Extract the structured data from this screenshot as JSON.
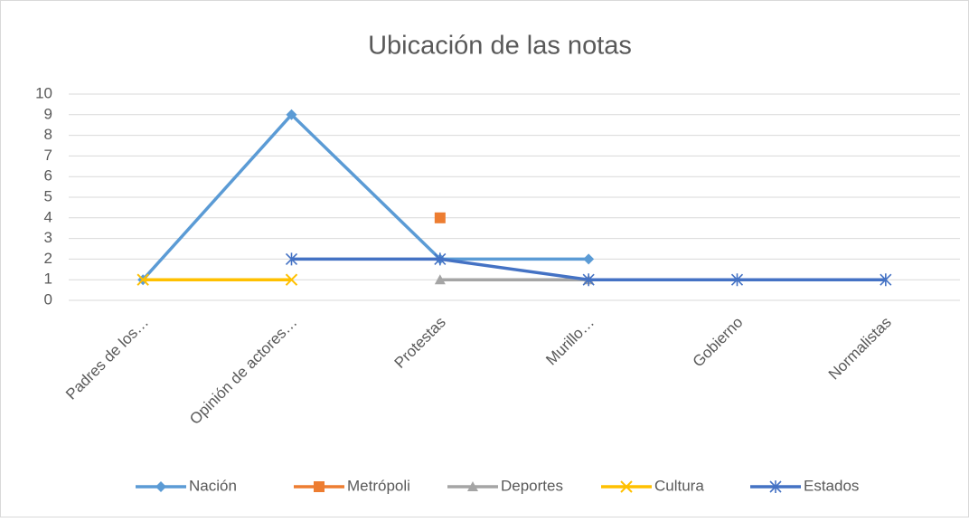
{
  "chart_data": {
    "type": "line",
    "title": "Ubicación de las notas",
    "categories": [
      "Padres de los…",
      "Opinión de actores…",
      "Protestas",
      "Murillo…",
      "Gobierno",
      "Normalistas"
    ],
    "series": [
      {
        "name": "Nación",
        "color": "#5b9bd5",
        "marker": "diamond",
        "values": [
          1,
          9,
          2,
          2,
          null,
          null
        ]
      },
      {
        "name": "Metrópoli",
        "color": "#ed7d31",
        "marker": "square",
        "values": [
          null,
          null,
          4,
          null,
          null,
          null
        ]
      },
      {
        "name": "Deportes",
        "color": "#a5a5a5",
        "marker": "triangle",
        "values": [
          null,
          null,
          1,
          1,
          null,
          null
        ]
      },
      {
        "name": "Cultura",
        "color": "#ffc000",
        "marker": "x",
        "values": [
          1,
          1,
          null,
          null,
          null,
          null
        ]
      },
      {
        "name": "Estados",
        "color": "#4472c4",
        "marker": "asterisk",
        "values": [
          null,
          2,
          2,
          1,
          1,
          1
        ]
      }
    ],
    "ylim": [
      0,
      10
    ],
    "yticks": [
      0,
      1,
      2,
      3,
      4,
      5,
      6,
      7,
      8,
      9,
      10
    ],
    "grid": true,
    "legend": "bottom"
  }
}
